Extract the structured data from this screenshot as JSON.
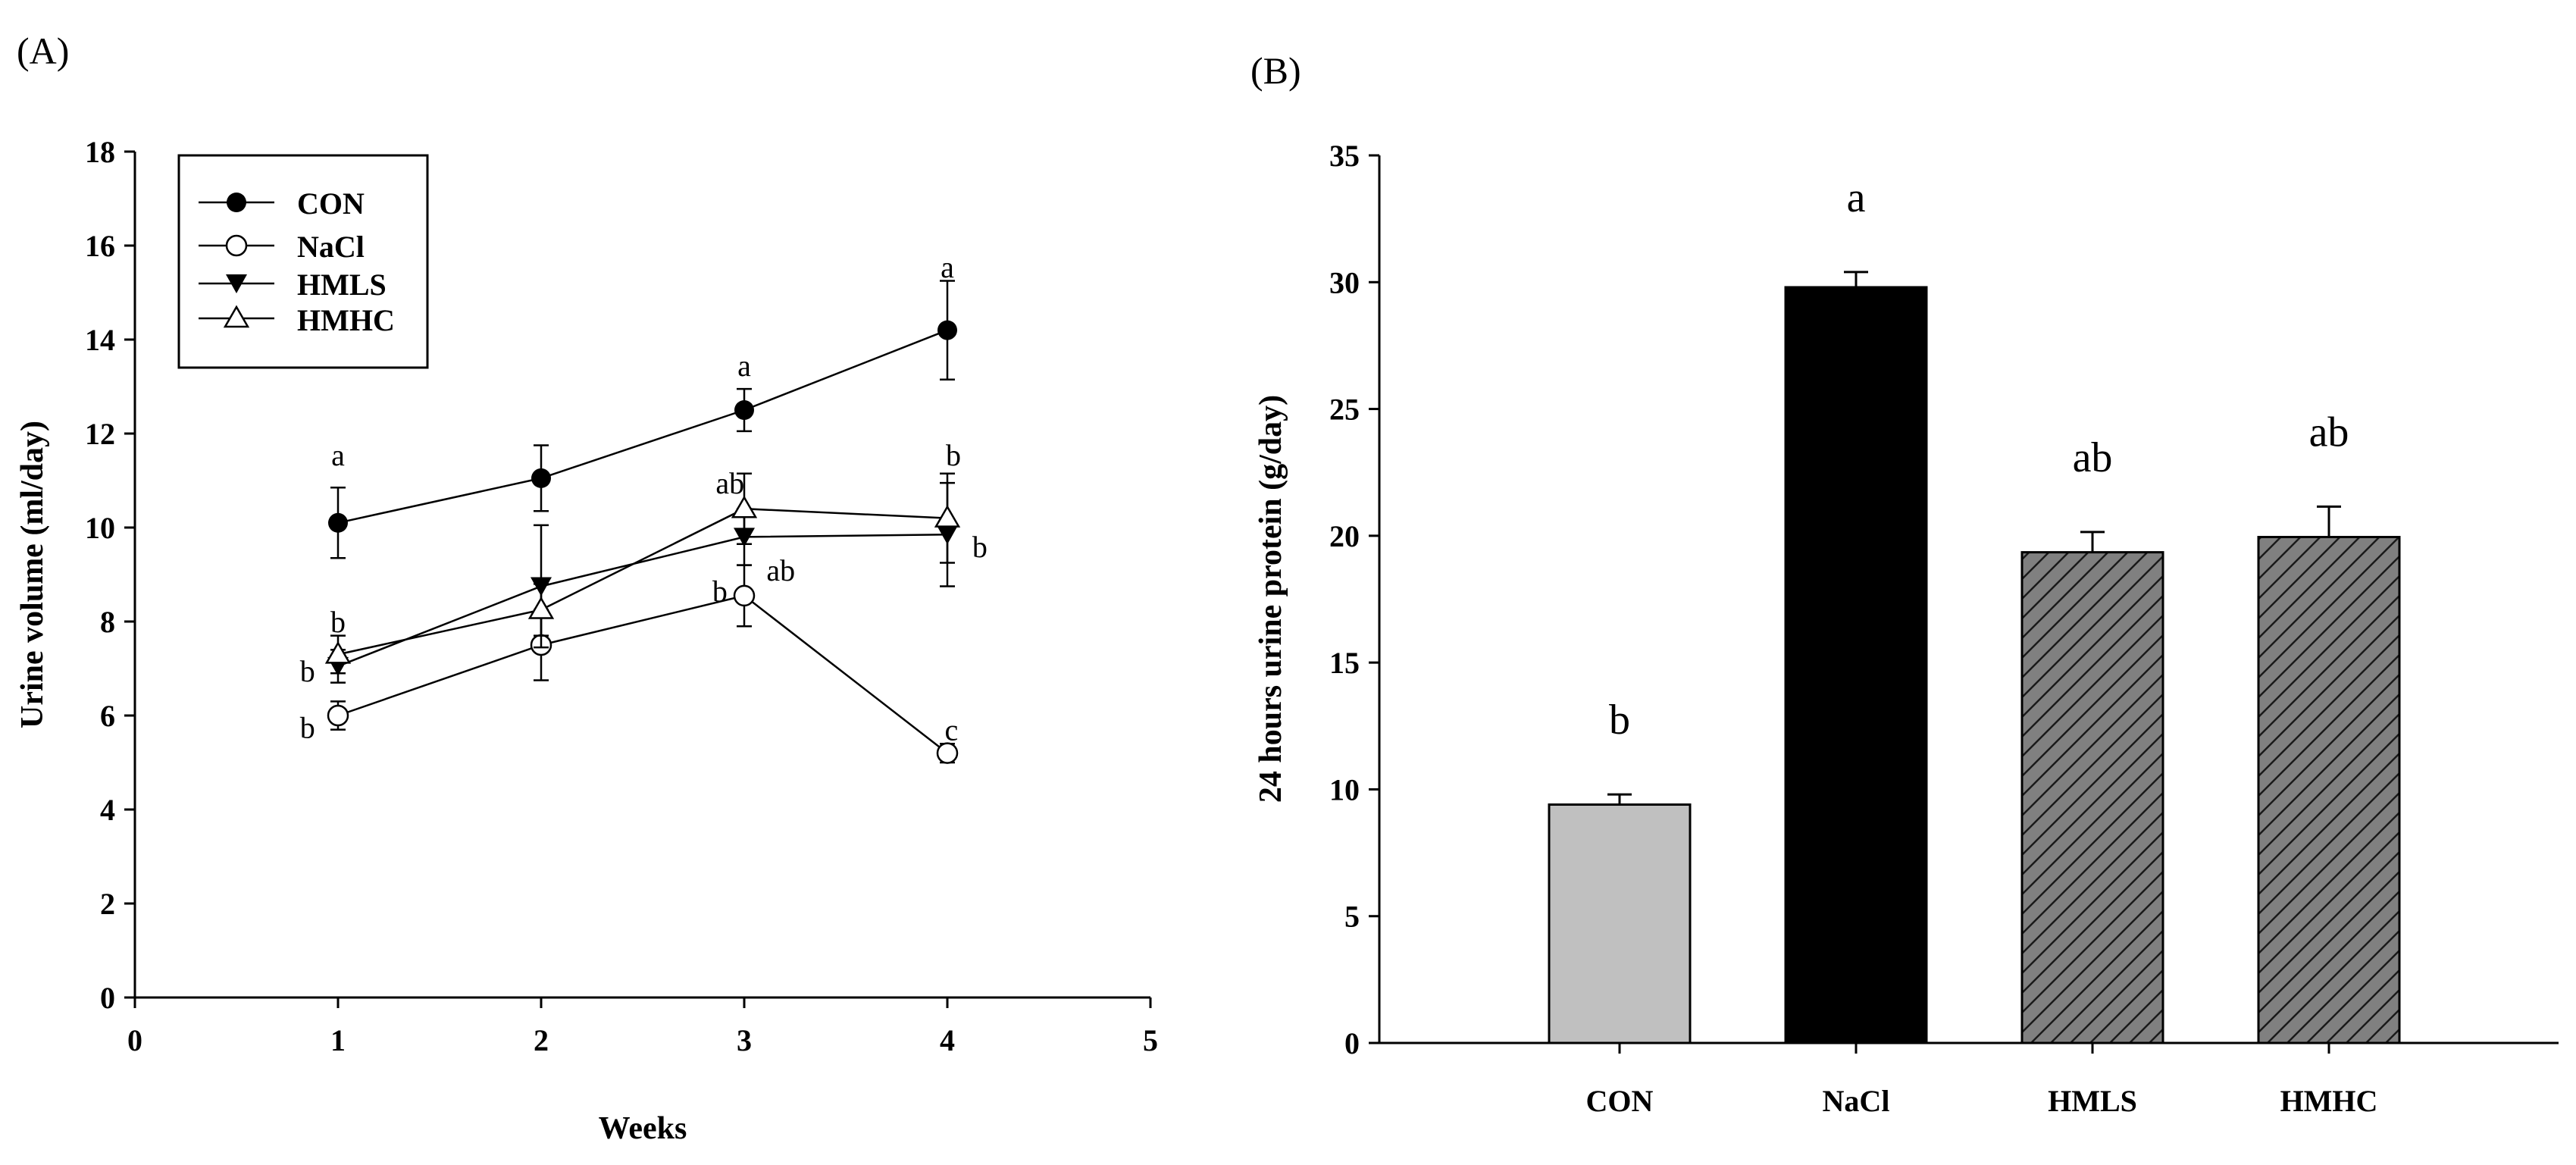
{
  "chart_data": [
    {
      "type": "line",
      "panel_label": "(A)",
      "xlabel": "Weeks",
      "ylabel": "Urine volume (ml/day)",
      "xlim": [
        0,
        5
      ],
      "ylim": [
        0,
        18
      ],
      "xticks": [
        0,
        1,
        2,
        3,
        4,
        5
      ],
      "yticks": [
        0,
        2,
        4,
        6,
        8,
        10,
        12,
        14,
        16,
        18
      ],
      "x": [
        1,
        2,
        3,
        4
      ],
      "legend_position": "top-left",
      "series": [
        {
          "name": "CON",
          "marker": "filled-circle",
          "values": [
            10.1,
            11.05,
            12.5,
            14.2
          ],
          "errors": [
            0.75,
            0.7,
            0.45,
            1.05
          ]
        },
        {
          "name": "NaCl",
          "marker": "open-circle",
          "values": [
            6.0,
            7.5,
            8.55,
            5.2
          ],
          "errors": [
            0.3,
            0.75,
            0.65,
            0.2
          ]
        },
        {
          "name": "HMLS",
          "marker": "filled-triangle-down",
          "values": [
            7.05,
            8.75,
            9.8,
            9.85
          ],
          "errors": [
            0.35,
            1.3,
            0.6,
            1.1
          ]
        },
        {
          "name": "HMHC",
          "marker": "open-triangle-up",
          "values": [
            7.3,
            8.25,
            10.4,
            10.2
          ],
          "errors": [
            0.4,
            0.55,
            0.75,
            0.95
          ]
        }
      ],
      "annotations": [
        {
          "text": "a",
          "x": 1,
          "y": 11.55,
          "anchor": "middle"
        },
        {
          "text": "a",
          "x": 3,
          "y": 13.45,
          "anchor": "middle"
        },
        {
          "text": "a",
          "x": 4,
          "y": 15.55,
          "anchor": "middle"
        },
        {
          "text": "b",
          "x": 1,
          "y": 8.0,
          "anchor": "middle"
        },
        {
          "text": "b",
          "x": 0.85,
          "y": 6.95,
          "anchor": "middle"
        },
        {
          "text": "b",
          "x": 0.85,
          "y": 5.75,
          "anchor": "middle"
        },
        {
          "text": "ab",
          "x": 2.93,
          "y": 10.95,
          "anchor": "middle"
        },
        {
          "text": "b",
          "x": 2.88,
          "y": 8.65,
          "anchor": "middle"
        },
        {
          "text": "ab",
          "x": 3.18,
          "y": 9.1,
          "anchor": "middle"
        },
        {
          "text": "b",
          "x": 4.03,
          "y": 11.55,
          "anchor": "middle"
        },
        {
          "text": "b",
          "x": 4.16,
          "y": 9.6,
          "anchor": "middle"
        },
        {
          "text": "c",
          "x": 4.02,
          "y": 5.7,
          "anchor": "middle"
        }
      ]
    },
    {
      "type": "bar",
      "panel_label": "(B)",
      "xlabel": "",
      "ylabel": "24 hours urine protein (g/day)",
      "ylim": [
        0,
        35
      ],
      "yticks": [
        0,
        5,
        10,
        15,
        20,
        25,
        30,
        35
      ],
      "categories": [
        "CON",
        "NaCl",
        "HMLS",
        "HMHC"
      ],
      "values": [
        9.4,
        29.8,
        19.35,
        19.95
      ],
      "errors": [
        0.4,
        0.6,
        0.8,
        1.2
      ],
      "colors": [
        "#c0c0c0",
        "#000000",
        "#808080",
        "#808080"
      ],
      "hatched": [
        false,
        false,
        true,
        true
      ],
      "significance": [
        "b",
        "a",
        "ab",
        "ab"
      ]
    }
  ]
}
